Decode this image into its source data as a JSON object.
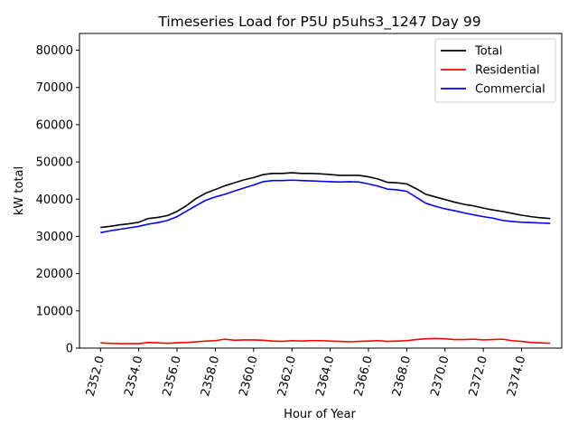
{
  "chart_data": {
    "type": "line",
    "title": "Timeseries Load for P5U p5uhs3_1247  Day 99",
    "xlabel": "Hour of Year",
    "ylabel": "kW total",
    "xlim": [
      2350.9,
      2376.1
    ],
    "ylim": [
      0,
      84500
    ],
    "x_ticks": [
      2352,
      2354,
      2356,
      2358,
      2360,
      2362,
      2364,
      2366,
      2368,
      2370,
      2372,
      2374
    ],
    "x_tick_labels": [
      "2352.0",
      "2354.0",
      "2356.0",
      "2358.0",
      "2360.0",
      "2362.0",
      "2364.0",
      "2366.0",
      "2368.0",
      "2370.0",
      "2372.0",
      "2374.0"
    ],
    "y_ticks": [
      0,
      10000,
      20000,
      30000,
      40000,
      50000,
      60000,
      70000,
      80000
    ],
    "y_tick_labels": [
      "0",
      "10000",
      "20000",
      "30000",
      "40000",
      "50000",
      "60000",
      "70000",
      "80000"
    ],
    "legend_position": "top-right",
    "x": [
      2352.0,
      2352.5,
      2353.0,
      2353.5,
      2354.0,
      2354.5,
      2355.0,
      2355.5,
      2356.0,
      2356.5,
      2357.0,
      2357.5,
      2358.0,
      2358.5,
      2359.0,
      2359.5,
      2360.0,
      2360.5,
      2361.0,
      2361.5,
      2362.0,
      2362.5,
      2363.0,
      2363.5,
      2364.0,
      2364.5,
      2365.0,
      2365.5,
      2366.0,
      2366.5,
      2367.0,
      2367.5,
      2368.0,
      2368.5,
      2369.0,
      2369.5,
      2370.0,
      2370.5,
      2371.0,
      2371.5,
      2372.0,
      2372.5,
      2373.0,
      2373.5,
      2374.0,
      2374.5,
      2375.0,
      2375.5
    ],
    "series": [
      {
        "name": "Total",
        "color": "#000000",
        "values": [
          32400,
          32700,
          33100,
          33400,
          33800,
          34800,
          35100,
          35600,
          36700,
          38300,
          40200,
          41600,
          42600,
          43600,
          44400,
          45200,
          45800,
          46600,
          46900,
          46900,
          47100,
          46900,
          46900,
          46800,
          46600,
          46400,
          46400,
          46400,
          46000,
          45400,
          44500,
          44400,
          44100,
          42800,
          41300,
          40600,
          39900,
          39200,
          38600,
          38200,
          37600,
          37100,
          36700,
          36200,
          35700,
          35300,
          35000,
          34800
        ]
      },
      {
        "name": "Residential",
        "color": "#ff0000",
        "values": [
          1400,
          1300,
          1200,
          1200,
          1200,
          1500,
          1400,
          1300,
          1400,
          1500,
          1700,
          1900,
          2000,
          2400,
          2100,
          2200,
          2200,
          2100,
          1900,
          1800,
          2000,
          1900,
          2000,
          2000,
          1900,
          1800,
          1700,
          1800,
          1900,
          2000,
          1800,
          1900,
          2000,
          2300,
          2500,
          2600,
          2500,
          2300,
          2300,
          2400,
          2200,
          2300,
          2400,
          2000,
          1800,
          1500,
          1400,
          1300
        ]
      },
      {
        "name": "Commercial",
        "color": "#0000ff",
        "values": [
          31000,
          31500,
          31900,
          32300,
          32700,
          33300,
          33700,
          34300,
          35300,
          36800,
          38300,
          39700,
          40600,
          41300,
          42200,
          43000,
          43800,
          44700,
          45000,
          45000,
          45100,
          45000,
          44900,
          44800,
          44700,
          44600,
          44700,
          44600,
          44100,
          43500,
          42700,
          42500,
          42100,
          40500,
          38900,
          38100,
          37400,
          36900,
          36300,
          35800,
          35300,
          34900,
          34300,
          34000,
          33800,
          33700,
          33600,
          33500
        ]
      }
    ]
  }
}
